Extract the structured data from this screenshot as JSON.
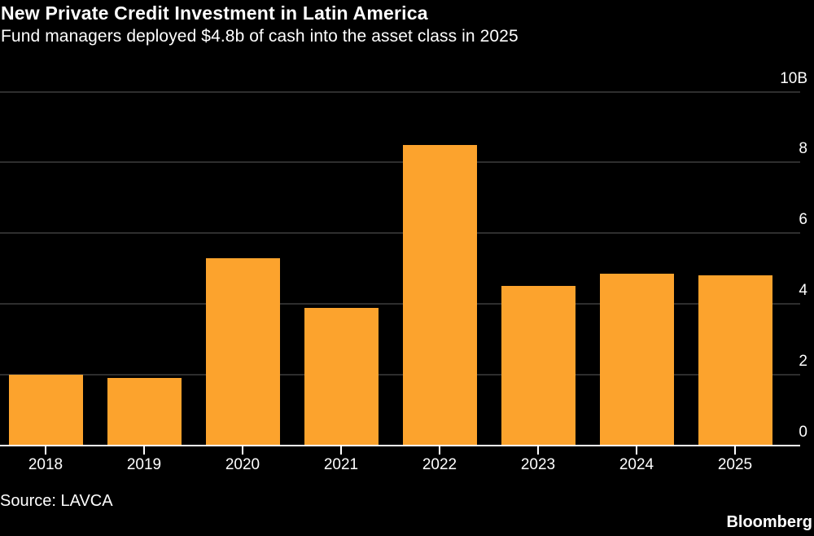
{
  "header": {
    "title": "New Private Credit Investment in Latin America",
    "subtitle": "Fund managers deployed $4.8b of cash into the asset class in 2025"
  },
  "footer": {
    "source": "Source: LAVCA",
    "brand": "Bloomberg"
  },
  "chart_data": {
    "type": "bar",
    "title": "New Private Credit Investment in Latin America",
    "subtitle": "Fund managers deployed $4.8b of cash into the asset class in 2025",
    "categories": [
      "2018",
      "2019",
      "2020",
      "2021",
      "2022",
      "2023",
      "2024",
      "2025"
    ],
    "values": [
      2.0,
      1.9,
      5.3,
      3.9,
      8.5,
      4.5,
      4.85,
      4.8
    ],
    "unit": "billions USD",
    "xlabel": "",
    "ylabel": "",
    "ylim": [
      0,
      10
    ],
    "yticks": [
      {
        "value": 10,
        "label": "10B"
      },
      {
        "value": 8,
        "label": "8"
      },
      {
        "value": 6,
        "label": "6"
      },
      {
        "value": 4,
        "label": "4"
      },
      {
        "value": 2,
        "label": "2"
      },
      {
        "value": 0,
        "label": "0"
      }
    ],
    "grid": "horizontal",
    "legend": "none",
    "colors": {
      "bar": "#FCA32D",
      "gridline": "#2E2E2E",
      "baseline": "#FFFFFF",
      "tick": "#FFFFFF",
      "background": "#000000",
      "text": "#FFFFFF"
    }
  }
}
